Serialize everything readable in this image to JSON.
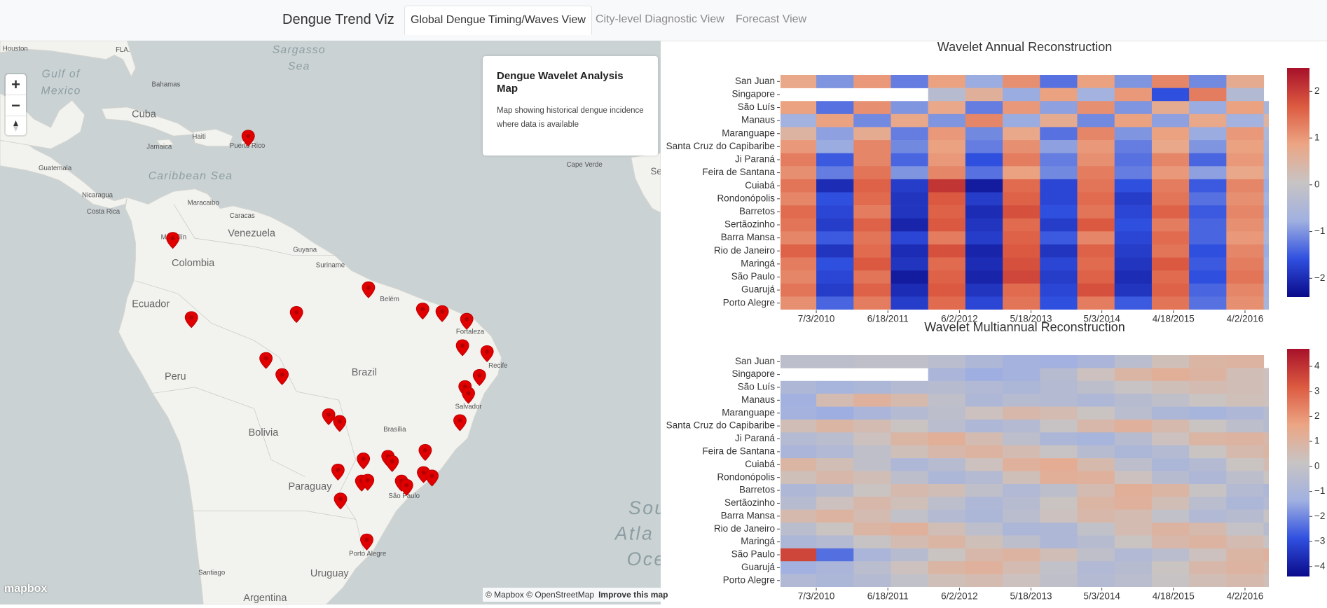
{
  "nav": {
    "brand": "Dengue Trend Viz",
    "tabs": [
      "Global Dengue Timing/Waves View",
      "City-level Diagnostic View",
      "Forecast View"
    ],
    "active": 0
  },
  "map": {
    "info": {
      "title": "Dengue Wavelet Analysis Map",
      "text": "Map showing historical dengue incidence where data is available"
    },
    "zoom_in": "+",
    "zoom_out": "−",
    "logo": "mapbox",
    "attribution": [
      "© Mapbox © OpenStreetMap",
      "Improve this map"
    ],
    "labels": [
      "Houston",
      "FLA.",
      "Gulf of",
      "Mexico",
      "Sargasso",
      "Sea",
      "Bahamas",
      "Cuba",
      "Haiti",
      "Jamaica",
      "Puerto Rico",
      "Caribbean Sea",
      "Guatemala",
      "Nicaragua",
      "Costa Rica",
      "Maracaibo",
      "Caracas",
      "Venezuela",
      "Medellín",
      "Colombia",
      "Guyana",
      "Suriname",
      "Belém",
      "Fortaleza",
      "Recife",
      "Salvador",
      "Ecuador",
      "Peru",
      "Brazil",
      "Brasília",
      "Bolivia",
      "Paraguay",
      "São Paulo",
      "Porto Alegre",
      "Uruguay",
      "Santiago",
      "Argentina",
      "Cape Verde",
      "Sene",
      "Sou",
      "Atla",
      "Oce"
    ]
  },
  "chart_data": [
    {
      "type": "heatmap",
      "title": "Wavelet Annual Reconstruction",
      "categories": [
        "San Juan",
        "Singapore",
        "São Luís",
        "Manaus",
        "Maranguape",
        "Santa Cruz do Capibaribe",
        "Ji Paraná",
        "Feira de Santana",
        "Cuiabá",
        "Rondonópolis",
        "Barretos",
        "Sertãozinho",
        "Barra Mansa",
        "Rio de Janeiro",
        "Maringá",
        "São Paulo",
        "Guarujá",
        "Porto Alegre"
      ],
      "x": [
        2010.25,
        2010.75,
        2011.25,
        2011.75,
        2012.25,
        2012.75,
        2013.25,
        2013.75,
        2014.25,
        2014.75,
        2015.25,
        2015.75,
        2016.25,
        2016.75
      ],
      "z": [
        [
          0.8,
          -1,
          1,
          -1.2,
          0.9,
          -0.8,
          1.1,
          -1.3,
          0.9,
          -1,
          1.2,
          -1.1,
          0.7,
          null
        ],
        [
          null,
          null,
          null,
          null,
          -0.3,
          0.6,
          -0.8,
          0.9,
          -0.7,
          1,
          -1.6,
          1.3,
          -0.4,
          null
        ],
        [
          0.9,
          -1.3,
          1.1,
          -1,
          0.8,
          -1.2,
          1,
          -0.9,
          1.1,
          -1,
          0.7,
          -0.8,
          0.9,
          -0.6
        ],
        [
          -0.7,
          0.9,
          -1.1,
          0.8,
          -1,
          1.2,
          -0.8,
          0.7,
          -1.1,
          0.9,
          -0.9,
          0.8,
          -0.7,
          0.5
        ],
        [
          0.5,
          -0.9,
          0.7,
          -1.2,
          1,
          -1.1,
          0.8,
          -1.3,
          1.2,
          -1,
          0.9,
          -0.8,
          1,
          -0.5
        ],
        [
          1,
          -0.8,
          1.2,
          -1.1,
          0.9,
          -1.2,
          1.1,
          -0.9,
          1,
          -1.2,
          0.8,
          -1,
          0.9,
          -0.6
        ],
        [
          1.3,
          -1.5,
          1.2,
          -1.4,
          1,
          -1.6,
          1.3,
          -1.2,
          1.1,
          -1.3,
          1.2,
          -1.4,
          1,
          -0.7
        ],
        [
          1.1,
          -1.2,
          1.4,
          -1,
          1.2,
          -1.3,
          0.9,
          -1.1,
          1.3,
          -1.2,
          1,
          -0.9,
          0.8,
          -0.6
        ],
        [
          1.4,
          -2,
          1.6,
          -1.8,
          2.1,
          -2.2,
          1.5,
          -1.7,
          1.4,
          -1.6,
          1.3,
          -1.5,
          1.2,
          -0.8
        ],
        [
          1.2,
          -1.6,
          1.5,
          -1.9,
          1.7,
          -1.8,
          1.6,
          -1.7,
          1.5,
          -1.8,
          1.4,
          -1.3,
          1.1,
          -0.7
        ],
        [
          1.5,
          -1.7,
          1.3,
          -1.9,
          1.6,
          -2,
          1.8,
          -1.6,
          1.4,
          -1.7,
          1.6,
          -1.5,
          1.2,
          -0.8
        ],
        [
          1.4,
          -1.8,
          1.6,
          -2.1,
          1.7,
          -1.9,
          1.5,
          -1.8,
          1.7,
          -1.6,
          1.3,
          -1.4,
          1.1,
          -0.7
        ],
        [
          1.2,
          -1.5,
          1.4,
          -1.7,
          1.3,
          -1.8,
          1.6,
          -1.5,
          1.2,
          -1.7,
          1.5,
          -1.4,
          1,
          -0.6
        ],
        [
          1.6,
          -1.9,
          1.5,
          -2,
          1.8,
          -2.1,
          1.7,
          -1.9,
          1.6,
          -1.8,
          1.4,
          -1.6,
          1.2,
          -0.8
        ],
        [
          1.3,
          -1.6,
          1.7,
          -1.9,
          1.5,
          -2,
          1.8,
          -1.7,
          1.5,
          -1.9,
          1.7,
          -1.5,
          1.3,
          -0.7
        ],
        [
          1.2,
          -1.7,
          1.4,
          -2.2,
          1.6,
          -2.1,
          1.9,
          -1.8,
          1.6,
          -2,
          1.5,
          -1.6,
          1.4,
          -0.8
        ],
        [
          1.4,
          -1.8,
          1.6,
          -2,
          1.7,
          -1.9,
          1.5,
          -1.7,
          1.8,
          -1.9,
          1.6,
          -1.4,
          1.2,
          -0.7
        ],
        [
          1.1,
          -1.4,
          1.3,
          -1.8,
          1.5,
          -1.7,
          1.4,
          -1.6,
          1.3,
          -1.5,
          1.4,
          -1.3,
          1.1,
          -0.6
        ]
      ],
      "xlim": [
        2010.02,
        2016.57
      ],
      "xticks": [
        {
          "value": 2010.5,
          "label": "7/3/2010"
        },
        {
          "value": 2011.46,
          "label": "6/18/2011"
        },
        {
          "value": 2012.42,
          "label": "6/2/2012"
        },
        {
          "value": 2013.38,
          "label": "5/18/2013"
        },
        {
          "value": 2014.33,
          "label": "5/3/2014"
        },
        {
          "value": 2015.29,
          "label": "4/18/2015"
        },
        {
          "value": 2016.25,
          "label": "4/2/2016"
        }
      ],
      "zlim": [
        -2.4,
        2.5
      ],
      "zticks": [
        2,
        1,
        0,
        {
          "value": -1,
          "label": "−1"
        },
        {
          "value": -2,
          "label": "−2"
        }
      ],
      "colorscale": [
        "#0a0a8a",
        "#3050e0",
        "#a0b0e0",
        "#c8c4c4",
        "#eca584",
        "#dc5a40",
        "#a8112a"
      ]
    },
    {
      "type": "heatmap",
      "title": "Wavelet Multiannual Reconstruction",
      "categories": [
        "San Juan",
        "Singapore",
        "São Luís",
        "Manaus",
        "Maranguape",
        "Santa Cruz do Capibaribe",
        "Ji Paraná",
        "Feira de Santana",
        "Cuiabá",
        "Rondonópolis",
        "Barretos",
        "Sertãozinho",
        "Barra Mansa",
        "Rio de Janeiro",
        "Maringá",
        "São Paulo",
        "Guarujá",
        "Porto Alegre"
      ],
      "x": [
        2010.25,
        2010.75,
        2011.25,
        2011.75,
        2012.25,
        2012.75,
        2013.25,
        2013.75,
        2014.25,
        2014.75,
        2015.25,
        2015.75,
        2016.25,
        2016.75
      ],
      "z": [
        [
          -0.3,
          -0.3,
          -0.2,
          -0.2,
          -0.4,
          -0.8,
          -1.2,
          -1.3,
          -1,
          -0.4,
          0.4,
          0.9,
          1,
          null
        ],
        [
          null,
          null,
          null,
          null,
          -1,
          -1.4,
          -1.2,
          -0.5,
          0.3,
          0.9,
          1.2,
          1,
          0.5,
          0.3
        ],
        [
          -0.8,
          -1.1,
          -0.9,
          -0.6,
          -0.5,
          -0.7,
          -0.9,
          -0.6,
          -0.3,
          0.1,
          0.4,
          0.6,
          0.5,
          0.3
        ],
        [
          -1.3,
          0.6,
          1.1,
          0.7,
          -0.2,
          -0.8,
          -0.5,
          -0.6,
          -0.8,
          -0.5,
          -0.2,
          0.2,
          0.4,
          0.3
        ],
        [
          -1.2,
          -1.4,
          -1,
          -0.6,
          -0.3,
          0.3,
          0.8,
          0.6,
          0.2,
          -0.4,
          -0.9,
          -1.1,
          -0.8,
          -0.5
        ],
        [
          0.5,
          0.9,
          0.6,
          0.2,
          -0.4,
          -0.8,
          -0.6,
          0.1,
          0.8,
          1.1,
          0.7,
          0.2,
          -0.3,
          -0.5
        ],
        [
          -0.6,
          -0.4,
          0.3,
          0.9,
          1.2,
          0.6,
          -0.3,
          -0.9,
          -1.1,
          -0.5,
          0.3,
          0.9,
          1,
          0.8
        ],
        [
          -1,
          -0.7,
          -0.2,
          0.4,
          0.8,
          1,
          0.6,
          0.1,
          -0.5,
          -0.9,
          -0.6,
          0.2,
          0.7,
          0.9
        ],
        [
          0.9,
          0.5,
          -0.2,
          -0.8,
          -0.5,
          0.3,
          1.1,
          1.3,
          0.7,
          -0.3,
          -0.9,
          -0.6,
          0.2,
          0.6
        ],
        [
          0.4,
          0.8,
          0.5,
          -0.3,
          -0.9,
          -0.6,
          0.4,
          1.2,
          1.1,
          0.3,
          -0.5,
          -0.8,
          -0.3,
          0.2
        ],
        [
          -0.8,
          -0.5,
          0.2,
          0.7,
          0.5,
          -0.2,
          -0.7,
          -0.3,
          0.6,
          1.2,
          0.9,
          0.1,
          -0.6,
          -0.8
        ],
        [
          -0.5,
          0.3,
          0.8,
          0.4,
          -0.3,
          -0.8,
          -0.5,
          0.2,
          0.9,
          1.1,
          0.5,
          -0.4,
          -0.9,
          -0.6
        ],
        [
          0.7,
          1,
          0.6,
          -0.1,
          -0.6,
          -0.9,
          -0.4,
          0.3,
          0.8,
          0.6,
          -0.1,
          -0.7,
          -0.5,
          0.1
        ],
        [
          -0.4,
          0.2,
          0.9,
          1.1,
          0.5,
          -0.3,
          -0.9,
          -0.8,
          -0.1,
          0.6,
          1,
          0.7,
          0,
          -0.5
        ],
        [
          -0.9,
          -0.6,
          0.1,
          0.6,
          0.9,
          0.4,
          -0.3,
          -0.8,
          -0.5,
          0.2,
          0.8,
          1,
          0.6,
          0.1
        ],
        [
          3.6,
          -2.4,
          -1,
          -0.5,
          0.2,
          0.8,
          1,
          0.5,
          -0.2,
          -0.7,
          -0.4,
          0.3,
          0.9,
          1.1
        ],
        [
          -1.3,
          -1,
          -0.4,
          0.3,
          0.9,
          1.1,
          0.6,
          -0.1,
          -0.7,
          -0.5,
          0.2,
          0.8,
          1,
          0.7
        ],
        [
          -0.7,
          -0.9,
          -0.6,
          -0.1,
          0.4,
          0.6,
          0.3,
          -0.2,
          -0.6,
          -0.4,
          0.1,
          0.5,
          0.7,
          0.4
        ]
      ],
      "xlim": [
        2010.02,
        2016.57
      ],
      "xticks": [
        {
          "value": 2010.5,
          "label": "7/3/2010"
        },
        {
          "value": 2011.46,
          "label": "6/18/2011"
        },
        {
          "value": 2012.42,
          "label": "6/2/2012"
        },
        {
          "value": 2013.38,
          "label": "5/18/2013"
        },
        {
          "value": 2014.33,
          "label": "5/3/2014"
        },
        {
          "value": 2015.29,
          "label": "4/18/2015"
        },
        {
          "value": 2016.25,
          "label": "4/2/2016"
        }
      ],
      "zlim": [
        -4.4,
        4.7
      ],
      "zticks": [
        4,
        3,
        2,
        1,
        0,
        {
          "value": -1,
          "label": "−1"
        },
        {
          "value": -2,
          "label": "−2"
        },
        {
          "value": -3,
          "label": "−3"
        },
        {
          "value": -4,
          "label": "−4"
        }
      ],
      "colorscale": [
        "#0a0a8a",
        "#3050e0",
        "#a0b0e0",
        "#c8c4c4",
        "#eca584",
        "#dc5a40",
        "#a8112a"
      ]
    }
  ]
}
